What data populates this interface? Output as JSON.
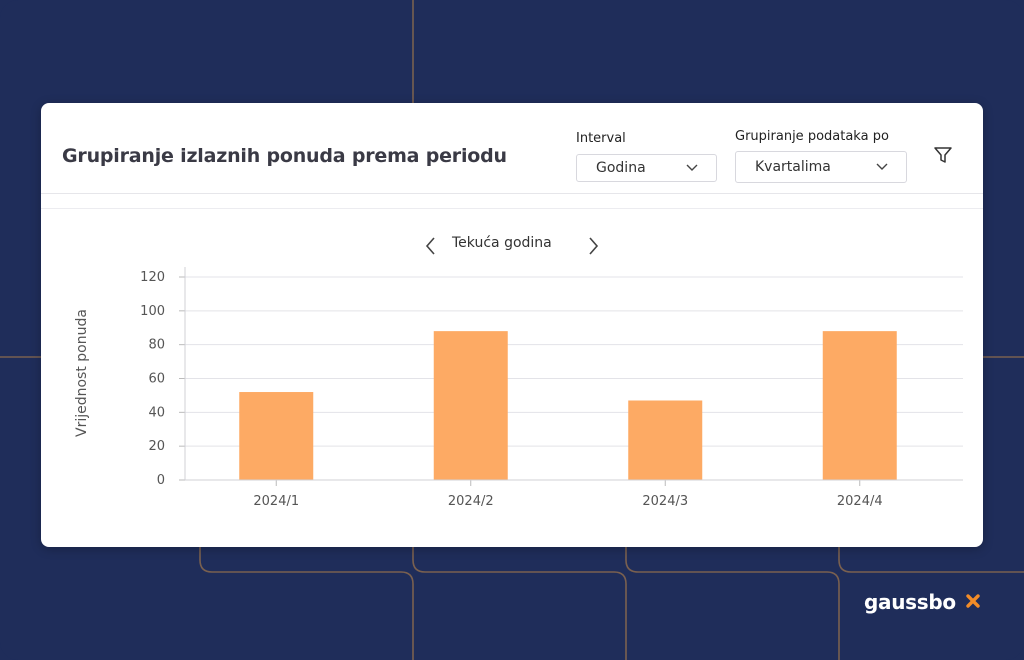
{
  "card": {
    "title": "Grupiranje izlaznih ponuda prema periodu"
  },
  "filters": {
    "interval_label": "Interval",
    "interval_value": "Godina",
    "grouping_label": "Grupiranje podataka po",
    "grouping_value": "Kvartalima"
  },
  "period_nav": {
    "label": "Tekuća godina"
  },
  "brand": {
    "name": "gaussbo",
    "accent": "#f28c28",
    "background": "#1f2d5a"
  },
  "chart_data": {
    "type": "bar",
    "categories": [
      "2024/1",
      "2024/2",
      "2024/3",
      "2024/4"
    ],
    "values": [
      52,
      88,
      47,
      88
    ],
    "ylabel": "Vrijednost ponuda",
    "ylim": [
      0,
      120
    ],
    "yticks": [
      0,
      20,
      40,
      60,
      80,
      100,
      120
    ],
    "bar_color": "#fdaa64",
    "grid": true
  }
}
